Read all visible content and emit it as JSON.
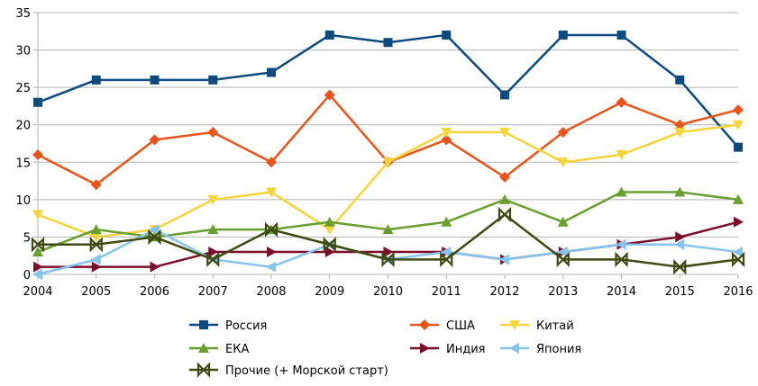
{
  "chart_data": {
    "type": "line",
    "title": "",
    "xlabel": "",
    "ylabel": "",
    "x": [
      2004,
      2005,
      2006,
      2007,
      2008,
      2009,
      2010,
      2011,
      2012,
      2013,
      2014,
      2015,
      2016
    ],
    "ylim": [
      0,
      35
    ],
    "yticks": [
      0,
      5,
      10,
      15,
      20,
      25,
      30,
      35
    ],
    "grid": "horizontal",
    "legend_position": "bottom",
    "series": [
      {
        "name": "Россия",
        "color": "#0d4a7d",
        "marker": "square",
        "values": [
          23,
          26,
          26,
          26,
          27,
          32,
          31,
          32,
          24,
          32,
          32,
          26,
          17
        ]
      },
      {
        "name": "США",
        "color": "#e8541c",
        "marker": "diamond",
        "values": [
          16,
          12,
          18,
          19,
          15,
          24,
          15,
          18,
          13,
          19,
          23,
          20,
          22
        ]
      },
      {
        "name": "Китай",
        "color": "#f7d43c",
        "marker": "triangle-down",
        "values": [
          8,
          5,
          6,
          10,
          11,
          6,
          15,
          19,
          19,
          15,
          16,
          19,
          20
        ]
      },
      {
        "name": "ЕКА",
        "color": "#6a9e2f",
        "marker": "triangle-up",
        "values": [
          3,
          6,
          5,
          6,
          6,
          7,
          6,
          7,
          10,
          7,
          11,
          11,
          10
        ]
      },
      {
        "name": "Индия",
        "color": "#7b0f2b",
        "marker": "triangle-right",
        "values": [
          1,
          1,
          1,
          3,
          3,
          3,
          3,
          3,
          2,
          3,
          4,
          5,
          7
        ]
      },
      {
        "name": "Япония",
        "color": "#86c3ed",
        "marker": "triangle-left",
        "values": [
          0,
          2,
          6,
          2,
          1,
          4,
          2,
          3,
          2,
          3,
          4,
          4,
          3
        ]
      },
      {
        "name": "Прочие (+ Морской старт)",
        "color": "#3e4a12",
        "marker": "bowtie",
        "values": [
          4,
          4,
          5,
          2,
          6,
          4,
          2,
          2,
          8,
          2,
          2,
          1,
          2
        ]
      }
    ],
    "legend_rows": [
      [
        0,
        1,
        2
      ],
      [
        3,
        4,
        5
      ],
      [
        6
      ]
    ]
  }
}
